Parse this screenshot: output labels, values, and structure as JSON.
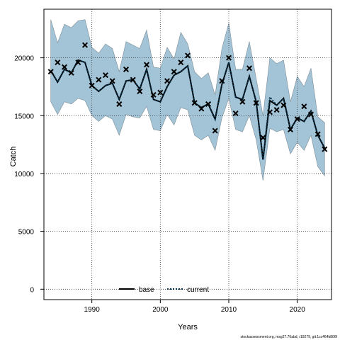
{
  "chart_data": {
    "type": "line",
    "xlabel": "Years",
    "ylabel": "Catch",
    "xlim": [
      1983,
      2025
    ],
    "ylim": [
      -900,
      24200
    ],
    "xticks": [
      1990,
      2000,
      2010,
      2020
    ],
    "yticks": [
      0,
      5000,
      10000,
      15000,
      20000
    ],
    "grid": true,
    "legend_position": "bottom",
    "x": [
      1984,
      1985,
      1986,
      1987,
      1988,
      1989,
      1990,
      1991,
      1992,
      1993,
      1994,
      1995,
      1996,
      1997,
      1998,
      1999,
      2000,
      2001,
      2002,
      2003,
      2004,
      2005,
      2006,
      2007,
      2008,
      2009,
      2010,
      2011,
      2012,
      2013,
      2014,
      2015,
      2016,
      2017,
      2018,
      2019,
      2020,
      2021,
      2022,
      2023,
      2024
    ],
    "series": [
      {
        "name": "base",
        "style": "solid",
        "values": [
          18900,
          17900,
          19000,
          18700,
          19800,
          19600,
          17600,
          17100,
          17600,
          17800,
          16400,
          18000,
          18100,
          17300,
          19000,
          16400,
          16200,
          17500,
          18500,
          18800,
          19300,
          16100,
          15700,
          16000,
          14700,
          17700,
          19600,
          16600,
          16400,
          18400,
          16200,
          11200,
          16300,
          15900,
          16500,
          13800,
          14800,
          14500,
          15400,
          13300,
          12200
        ]
      },
      {
        "name": "current",
        "style": "dotted",
        "values": [
          18900,
          17900,
          19000,
          18700,
          19800,
          19600,
          17600,
          17100,
          17600,
          17800,
          16400,
          18000,
          18100,
          17300,
          19000,
          16400,
          16200,
          17500,
          18500,
          18800,
          19300,
          16100,
          15700,
          16000,
          14700,
          17700,
          19600,
          16600,
          16400,
          18400,
          16200,
          11200,
          16600,
          15900,
          16500,
          13800,
          14800,
          14500,
          15400,
          13300,
          12200
        ]
      }
    ],
    "observed": {
      "marker": "x",
      "values": [
        18800,
        19600,
        19200,
        18700,
        19600,
        21100,
        17600,
        18100,
        18500,
        18000,
        16000,
        19000,
        18100,
        17100,
        19400,
        16800,
        17000,
        18000,
        18800,
        19600,
        20200,
        16100,
        15600,
        16000,
        13700,
        18000,
        20000,
        15200,
        16200,
        19100,
        16100,
        13100,
        15300,
        15500,
        15900,
        13800,
        14700,
        15800,
        15100,
        13400,
        12100
      ]
    },
    "ci_band": {
      "upper": [
        23300,
        21300,
        22900,
        22600,
        23200,
        23300,
        20900,
        20400,
        21200,
        20800,
        18800,
        21400,
        21100,
        20800,
        22400,
        19200,
        19100,
        20900,
        19900,
        22200,
        21200,
        18800,
        18200,
        18700,
        16800,
        20800,
        23000,
        19000,
        19000,
        21400,
        18200,
        15000,
        20000,
        19500,
        19800,
        16200,
        18400,
        17500,
        19100,
        14900,
        14400
      ],
      "lower": [
        16200,
        15100,
        16200,
        16000,
        16500,
        16300,
        15000,
        14500,
        15000,
        14700,
        13300,
        15100,
        14900,
        14800,
        15800,
        13800,
        13700,
        15100,
        14200,
        15700,
        15500,
        13300,
        12900,
        13300,
        12000,
        14800,
        16500,
        13800,
        13600,
        15000,
        12900,
        9400,
        13900,
        13600,
        13800,
        11700,
        12700,
        12000,
        13300,
        10600,
        9800
      ],
      "color": "#a3c3d6"
    },
    "colors": {
      "base": "#000000",
      "current": "#00304a",
      "observed": "#000000",
      "ci_edge": "#7d8e99"
    }
  },
  "footer": {
    "credit": "stockassessment.org, msg27.76abd, r19279, git:1cc464b806f"
  }
}
